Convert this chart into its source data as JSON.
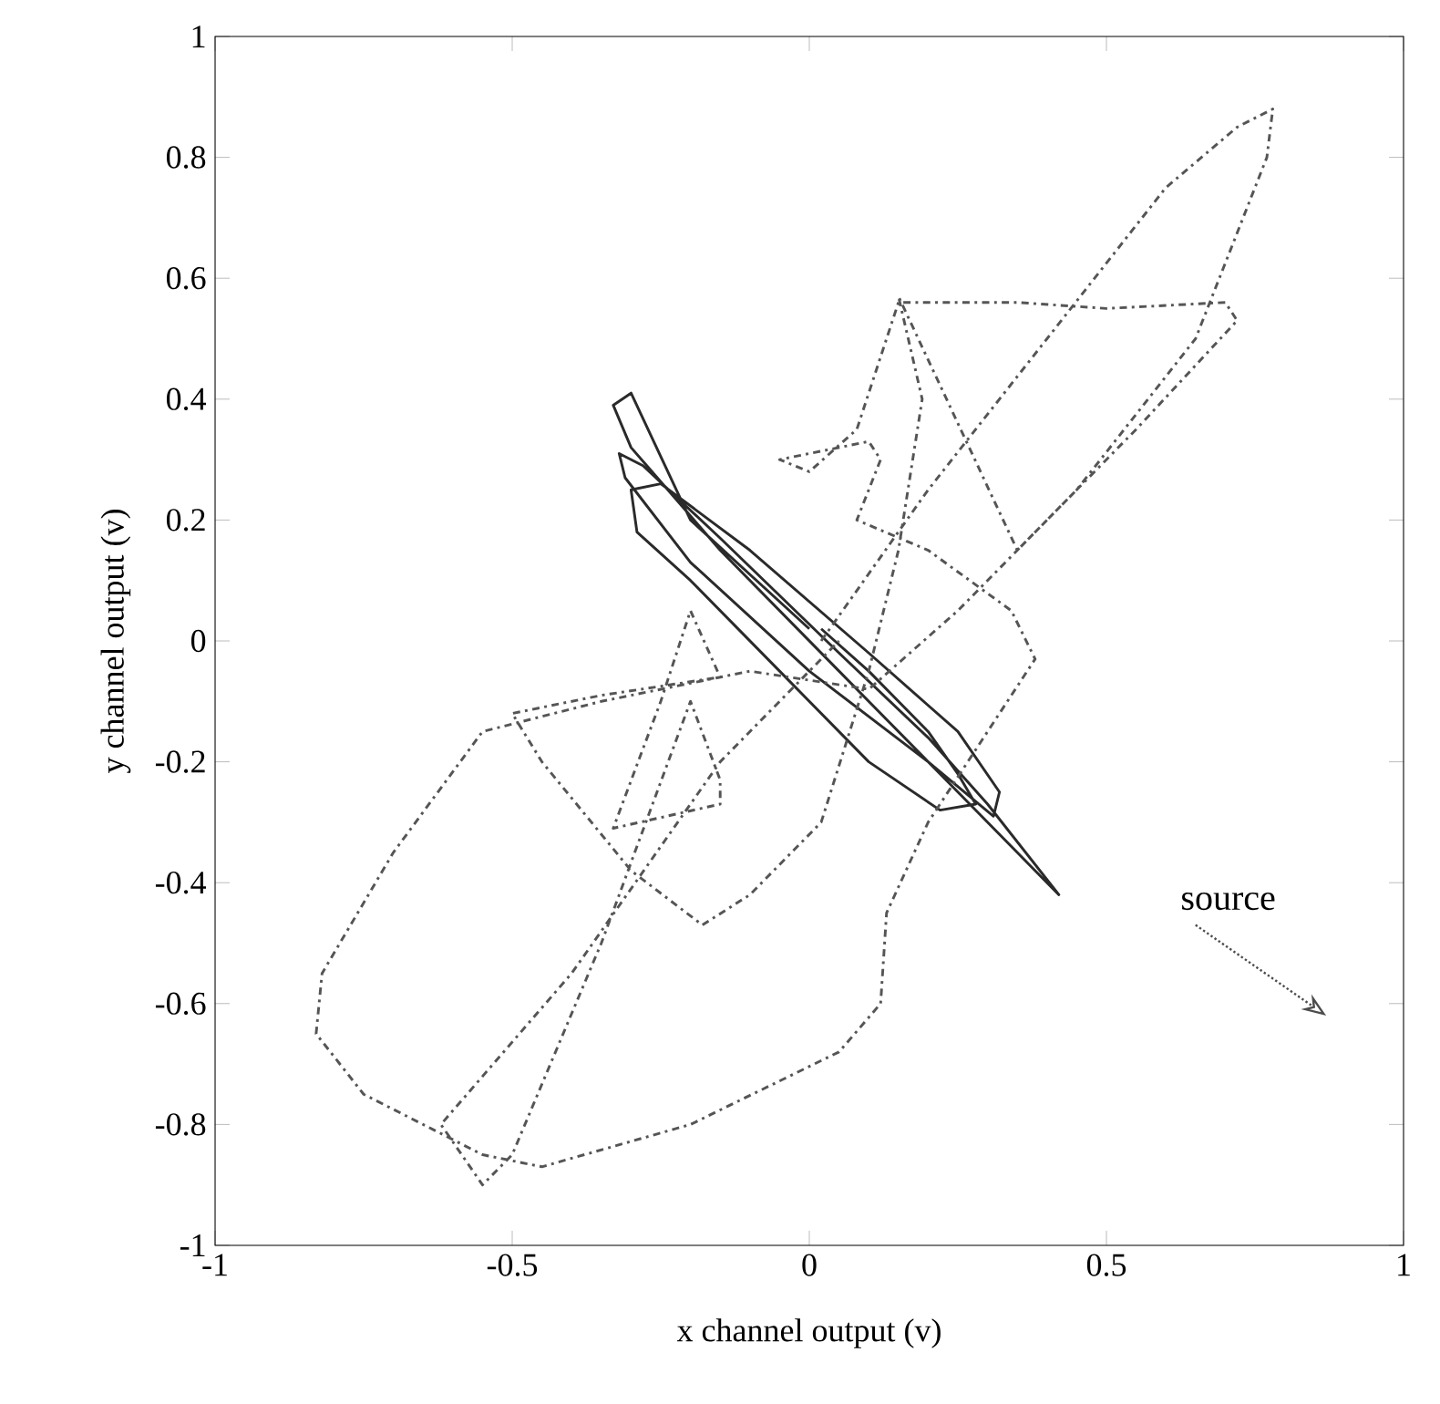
{
  "chart_data": {
    "type": "line",
    "xlabel": "x channel output (v)",
    "ylabel": "y channel output (v)",
    "xlim": [
      -1,
      1
    ],
    "ylim": [
      -1,
      1
    ],
    "xticks": [
      -1,
      -0.5,
      0,
      0.5,
      1
    ],
    "yticks": [
      -1,
      -0.8,
      -0.6,
      -0.4,
      -0.2,
      0,
      0.2,
      0.4,
      0.6,
      0.8,
      1
    ],
    "grid": false,
    "marker": "none",
    "series": [
      {
        "color": "#2a2a2a",
        "line_style": "solid",
        "x": [
          0.02,
          0.1,
          0.2,
          0.25,
          0.28,
          0.22,
          0.1,
          -0.05,
          -0.2,
          -0.29,
          -0.3,
          -0.25,
          -0.1,
          0.1,
          0.25,
          0.32,
          0.31,
          0.2,
          0.0,
          -0.2,
          -0.31,
          -0.32,
          -0.28,
          -0.15,
          0.05,
          0.2,
          0.3,
          0.42,
          0.25,
          0.05,
          -0.15,
          -0.3,
          -0.33,
          -0.3,
          -0.2,
          0.0
        ],
        "values": [
          0.02,
          -0.05,
          -0.15,
          -0.22,
          -0.27,
          -0.28,
          -0.2,
          -0.05,
          0.1,
          0.18,
          0.25,
          0.26,
          0.15,
          -0.02,
          -0.15,
          -0.25,
          -0.29,
          -0.2,
          -0.05,
          0.13,
          0.27,
          0.31,
          0.29,
          0.17,
          -0.02,
          -0.16,
          -0.27,
          -0.42,
          -0.25,
          -0.05,
          0.15,
          0.32,
          0.39,
          0.41,
          0.2,
          0.02
        ]
      },
      {
        "color": "#555555",
        "line_style": "dashdot",
        "x": [
          0.02,
          0.2,
          0.4,
          0.6,
          0.72,
          0.78,
          0.77,
          0.65,
          0.45,
          0.25,
          0.1,
          -0.1,
          -0.35,
          -0.55,
          -0.7,
          -0.82,
          -0.83,
          -0.75,
          -0.55,
          -0.45,
          -0.2,
          0.05,
          0.12,
          0.13,
          0.2,
          0.3,
          0.38,
          0.34,
          0.2,
          0.08,
          0.12,
          0.1,
          -0.05,
          0.0,
          0.08,
          0.15,
          0.35,
          0.5,
          0.7,
          0.72,
          0.55,
          0.35,
          0.15,
          0.19,
          0.15,
          0.1,
          0.02,
          -0.1,
          -0.18,
          -0.3,
          -0.45,
          -0.5,
          -0.35,
          -0.15,
          -0.2,
          -0.25,
          -0.33,
          -0.15,
          -0.15,
          -0.2,
          -0.35,
          -0.5,
          -0.55,
          -0.62,
          -0.4,
          -0.15,
          0.05
        ],
        "values": [
          0.0,
          0.25,
          0.5,
          0.75,
          0.85,
          0.88,
          0.8,
          0.5,
          0.25,
          0.05,
          -0.08,
          -0.05,
          -0.1,
          -0.15,
          -0.35,
          -0.55,
          -0.65,
          -0.75,
          -0.85,
          -0.87,
          -0.8,
          -0.68,
          -0.6,
          -0.45,
          -0.3,
          -0.15,
          -0.03,
          0.05,
          0.15,
          0.2,
          0.3,
          0.33,
          0.3,
          0.28,
          0.35,
          0.56,
          0.56,
          0.55,
          0.56,
          0.53,
          0.35,
          0.15,
          0.57,
          0.4,
          0.15,
          -0.05,
          -0.3,
          -0.42,
          -0.47,
          -0.38,
          -0.2,
          -0.12,
          -0.09,
          -0.06,
          0.05,
          -0.1,
          -0.31,
          -0.27,
          -0.23,
          -0.1,
          -0.5,
          -0.85,
          -0.9,
          -0.8,
          -0.55,
          -0.2,
          0.0
        ]
      }
    ],
    "annotations": [
      "source"
    ]
  }
}
